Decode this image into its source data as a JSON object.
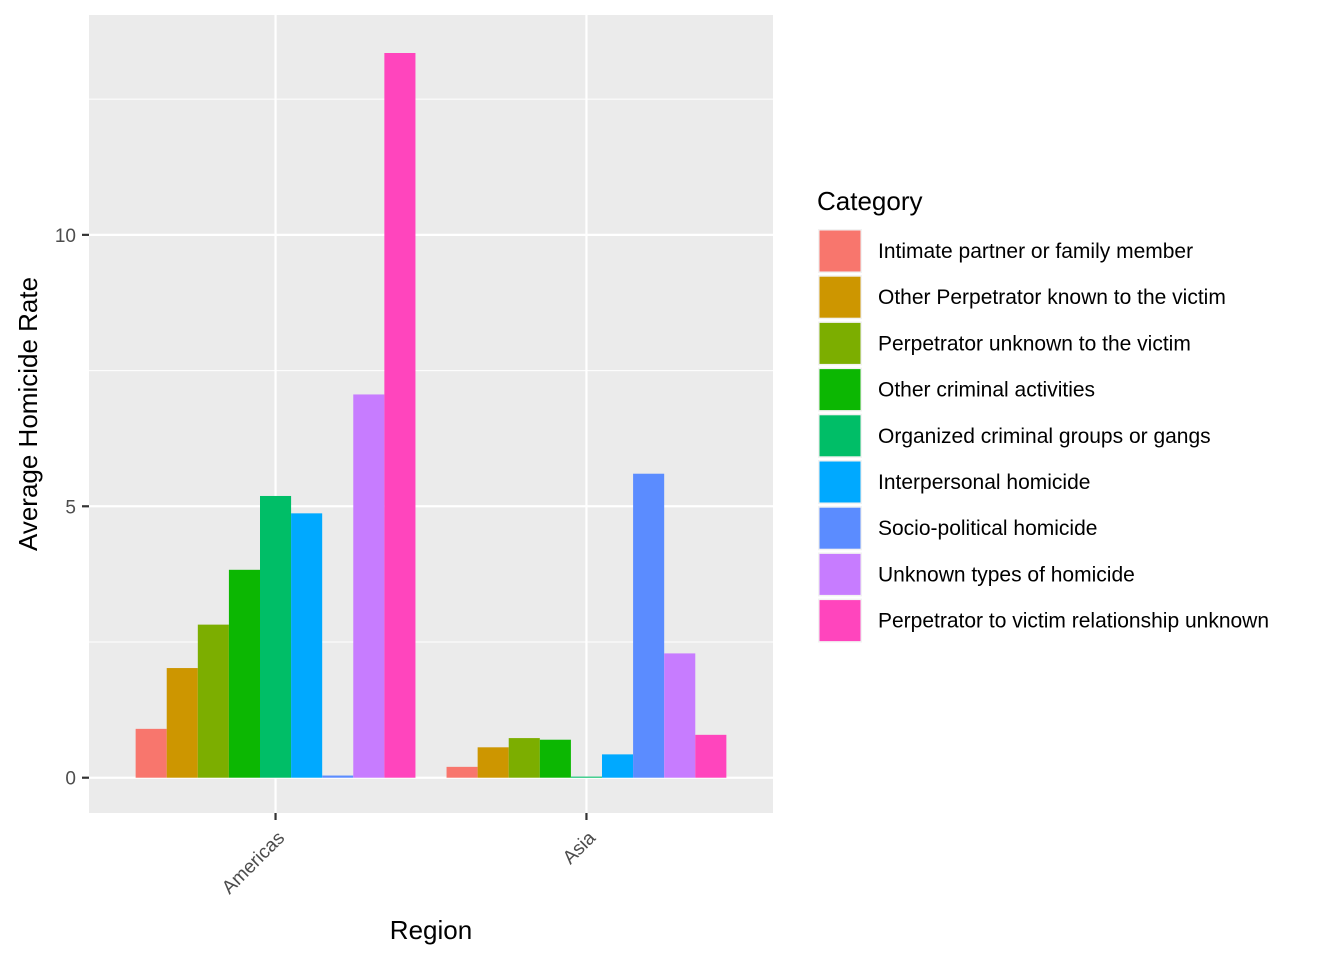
{
  "chart_data": {
    "type": "bar",
    "title": "",
    "xlabel": "Region",
    "ylabel": "Average Homicide Rate",
    "categories": [
      "Americas",
      "Asia"
    ],
    "ylim": [
      -0.65,
      14.05
    ],
    "yticks": [
      0,
      5,
      10
    ],
    "tick_labels": [
      "0",
      "5",
      "10"
    ],
    "grid": true,
    "legend": {
      "title": "Category",
      "position": "right"
    },
    "series": [
      {
        "name": "Intimate partner or family member",
        "color": "#F8766D",
        "values": [
          0.9,
          0.2
        ]
      },
      {
        "name": "Other Perpetrator known to the victim",
        "color": "#CD9600",
        "values": [
          2.02,
          0.56
        ]
      },
      {
        "name": "Perpetrator unknown to the victim",
        "color": "#7CAE00",
        "values": [
          2.82,
          0.73
        ]
      },
      {
        "name": "Other criminal activities",
        "color": "#0CB702",
        "values": [
          3.83,
          0.7
        ]
      },
      {
        "name": "Organized criminal groups or gangs",
        "color": "#00BE67",
        "values": [
          5.19,
          0.02
        ]
      },
      {
        "name": "Interpersonal homicide",
        "color": "#00A9FF",
        "values": [
          4.87,
          0.43
        ]
      },
      {
        "name": "Socio-political homicide",
        "color": "#5B8CFF",
        "values": [
          0.04,
          5.6
        ]
      },
      {
        "name": "Unknown types of homicide",
        "color": "#C77CFF",
        "values": [
          7.06,
          2.29
        ]
      },
      {
        "name": "Perpetrator to victim relationship unknown",
        "color": "#FF45BD",
        "values": [
          13.35,
          0.79
        ]
      }
    ]
  }
}
